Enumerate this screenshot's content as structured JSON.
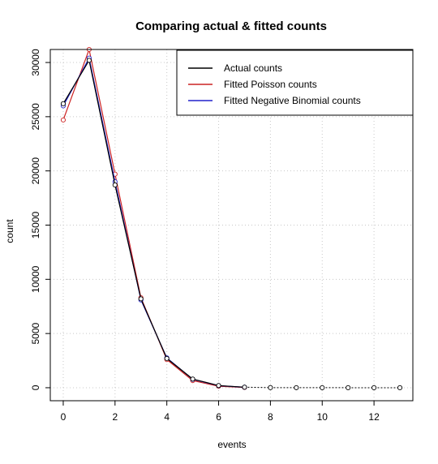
{
  "chart_data": {
    "type": "line",
    "title": "Comparing actual & fitted counts",
    "xlabel": "events",
    "ylabel": "count",
    "xlim": [
      -0.5,
      13.5
    ],
    "ylim": [
      -1200,
      31200
    ],
    "xticks": [
      0,
      2,
      4,
      6,
      8,
      10,
      12
    ],
    "yticks": [
      0,
      5000,
      10000,
      15000,
      20000,
      25000,
      30000
    ],
    "grid": true,
    "legend_position": "top-right",
    "x": [
      0,
      1,
      2,
      3,
      4,
      5,
      6,
      7,
      8,
      9,
      10,
      11,
      12,
      13
    ],
    "series": [
      {
        "name": "Actual counts",
        "color": "#000000",
        "values": [
          26200,
          30200,
          18700,
          8200,
          2700,
          800,
          200,
          50,
          10,
          5,
          3,
          2,
          1,
          1
        ]
      },
      {
        "name": "Fitted Poisson counts",
        "color": "#cc2222",
        "values": [
          24700,
          31200,
          19700,
          8300,
          2600,
          660,
          140,
          25,
          4,
          1,
          0,
          0,
          0,
          0
        ]
      },
      {
        "name": "Fitted Negative Binomial counts",
        "color": "#2222cc",
        "values": [
          26000,
          30400,
          19000,
          8100,
          2750,
          780,
          190,
          45,
          9,
          2,
          0,
          0,
          0,
          0
        ]
      }
    ]
  }
}
